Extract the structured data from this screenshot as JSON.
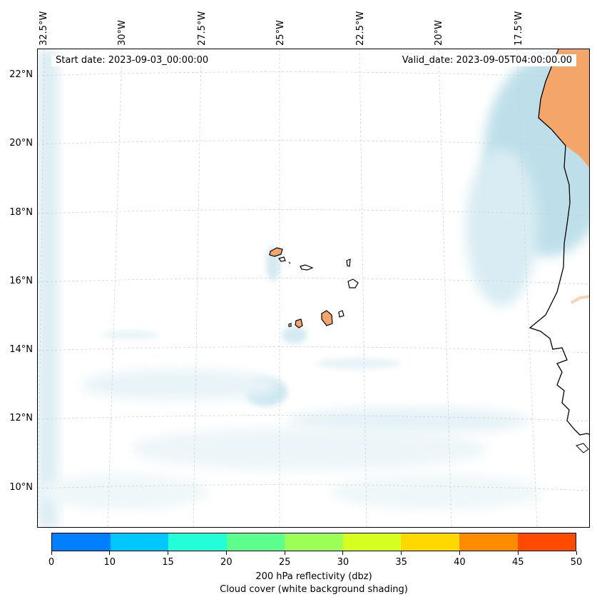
{
  "map": {
    "start_date": "Start date: 2023-09-03_00:00:00",
    "valid_date": "Valid_date: 2023-09-05T04:00:00.00",
    "lon_labels": [
      "32.5°W",
      "30°W",
      "27.5°W",
      "25°W",
      "22.5°W",
      "20°W",
      "17.5°W"
    ],
    "lat_labels": [
      "22°N",
      "20°N",
      "18°N",
      "16°N",
      "14°N",
      "12°N",
      "10°N"
    ],
    "region": "Cape Verde Islands and West African coast"
  },
  "colorbar": {
    "ticks": [
      "0",
      "10",
      "15",
      "20",
      "25",
      "30",
      "35",
      "40",
      "45",
      "50"
    ],
    "colors": [
      "#0080ff",
      "#00c8ff",
      "#22ffd8",
      "#5dff8c",
      "#9cff55",
      "#d6ff20",
      "#ffd800",
      "#ff8c00",
      "#ff4a00"
    ],
    "title_line1": "200 hPa reflectivity (dbz)",
    "title_line2": "Cloud cover (white background shading)"
  }
}
